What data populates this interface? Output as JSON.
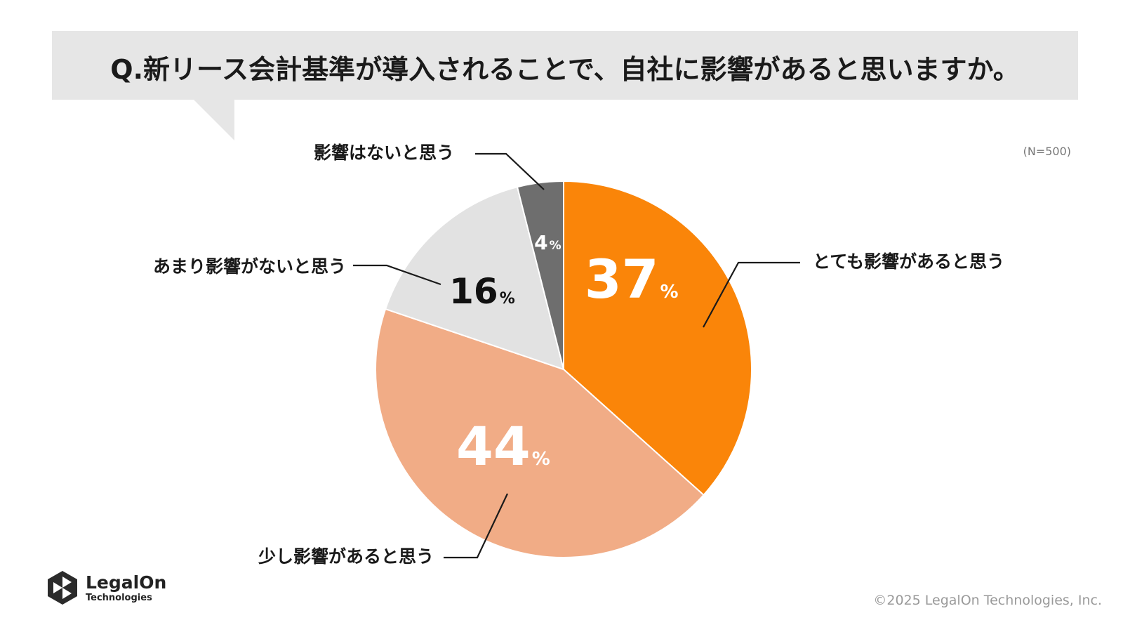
{
  "chart_data": {
    "type": "pie",
    "title": "Q.新リース会計基準が導入されることで、自社に影響があると思いますか。",
    "note": "(N=500)",
    "unit": "%",
    "slices": [
      {
        "label": "とても影響があると思う",
        "value": 37,
        "value_text": "37",
        "color": "#fa8509"
      },
      {
        "label": "少し影響があると思う",
        "value": 44,
        "value_text": "44",
        "color": "#f1ac86"
      },
      {
        "label": "あまり影響がないと思う",
        "value": 16,
        "value_text": "16",
        "color": "#e2e2e2"
      },
      {
        "label": "影響はないと思う",
        "value": 4,
        "value_text": "4",
        "color": "#6e6e6e"
      }
    ]
  },
  "footer": {
    "copyright": "©2025 LegalOn Technologies, Inc.",
    "logo_name": "LegalOn",
    "logo_sub": "Technologies"
  }
}
